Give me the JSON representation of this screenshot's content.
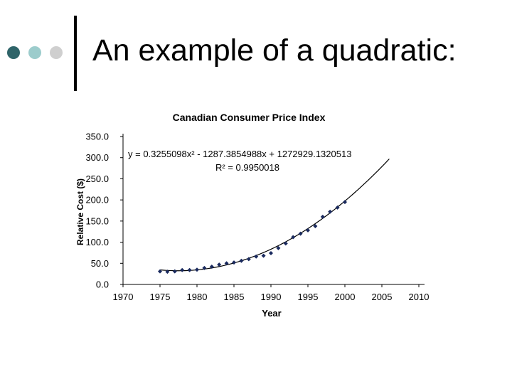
{
  "slide": {
    "title": "An example of a quadratic:",
    "bullet_colors": [
      "#2f6469",
      "#9ccccc",
      "#cfcfcf"
    ]
  },
  "chart_data": {
    "type": "scatter",
    "title": "Canadian Consumer Price Index",
    "xlabel": "Year",
    "ylabel": "Relative Cost ($)",
    "xlim": [
      1970,
      2010
    ],
    "ylim": [
      0,
      350
    ],
    "xticks": [
      "1970",
      "1975",
      "1980",
      "1985",
      "1990",
      "1995",
      "2000",
      "2005",
      "2010"
    ],
    "yticks": [
      "0.0",
      "50.0",
      "100.0",
      "150.0",
      "200.0",
      "250.0",
      "300.0",
      "350.0"
    ],
    "grid": false,
    "legend": false,
    "marker_color": "#1a2a5e",
    "series": [
      {
        "x": [
          1975,
          1976,
          1977,
          1978,
          1979,
          1980,
          1981,
          1982,
          1983,
          1984,
          1985,
          1986,
          1987,
          1988,
          1989,
          1990,
          1991,
          1992,
          1993,
          1994,
          1995,
          1996,
          1997,
          1998,
          1999,
          2000
        ],
        "y": [
          31,
          30,
          31,
          34,
          34,
          35,
          39,
          42,
          47,
          50,
          52,
          56,
          60,
          66,
          68,
          74,
          86,
          97,
          112,
          120,
          128,
          138,
          160,
          172,
          182,
          195
        ]
      }
    ],
    "trendline": {
      "type": "quadratic",
      "x_range": [
        1975,
        2006
      ],
      "equation": "y = 0.3255098x² - 1287.3854988x + 1272929.1320513",
      "r_squared": "R² = 0.9950018",
      "color": "#000000"
    }
  }
}
